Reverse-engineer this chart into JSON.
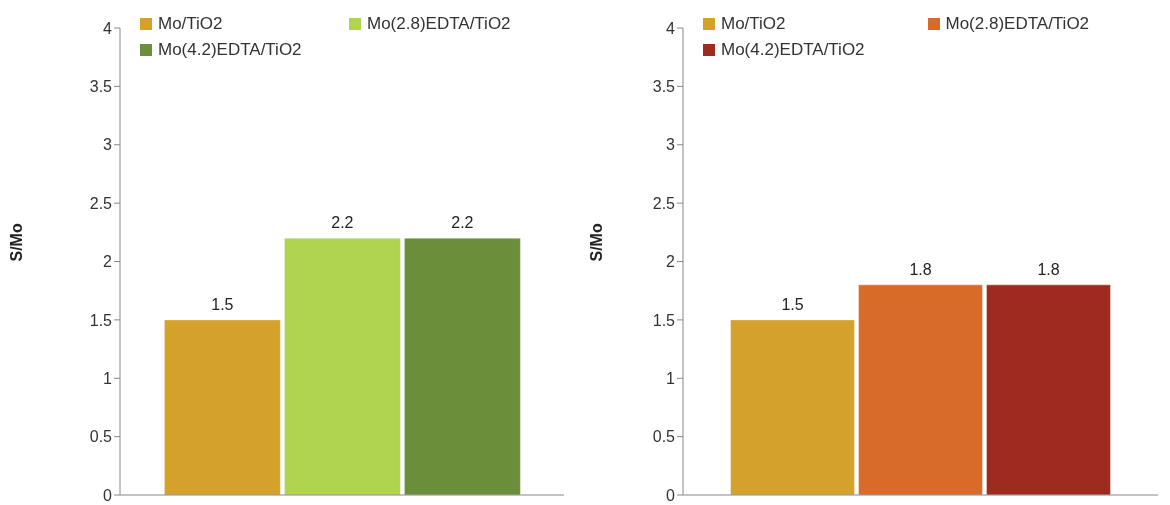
{
  "chart_data": [
    {
      "type": "bar",
      "ylabel": "S/Mo",
      "categories": [
        null
      ],
      "ylim": [
        0,
        4
      ],
      "yticks": [
        0,
        0.5,
        1,
        1.5,
        2,
        2.5,
        3,
        3.5,
        4
      ],
      "grid": false,
      "legend": "top",
      "data_labels": true,
      "series": [
        {
          "name": "Mo/TiO2",
          "color": "#d4a22a",
          "values": [
            1.5
          ]
        },
        {
          "name": "Mo(2.8)EDTA/TiO2",
          "color": "#b0d44f",
          "values": [
            2.2
          ]
        },
        {
          "name": "Mo(4.2)EDTA/TiO2",
          "color": "#6b8e3a",
          "values": [
            2.2
          ]
        }
      ]
    },
    {
      "type": "bar",
      "ylabel": "S/Mo",
      "categories": [
        null
      ],
      "ylim": [
        0,
        4
      ],
      "yticks": [
        0,
        0.5,
        1,
        1.5,
        2,
        2.5,
        3,
        3.5,
        4
      ],
      "grid": false,
      "legend": "top",
      "data_labels": true,
      "series": [
        {
          "name": "Mo/TiO2",
          "color": "#d4a22a",
          "values": [
            1.5
          ]
        },
        {
          "name": "Mo(2.8)EDTA/TiO2",
          "color": "#d86a2a",
          "values": [
            1.8
          ]
        },
        {
          "name": "Mo(4.2)EDTA/TiO2",
          "color": "#9e2b20",
          "values": [
            1.8
          ]
        }
      ]
    }
  ]
}
